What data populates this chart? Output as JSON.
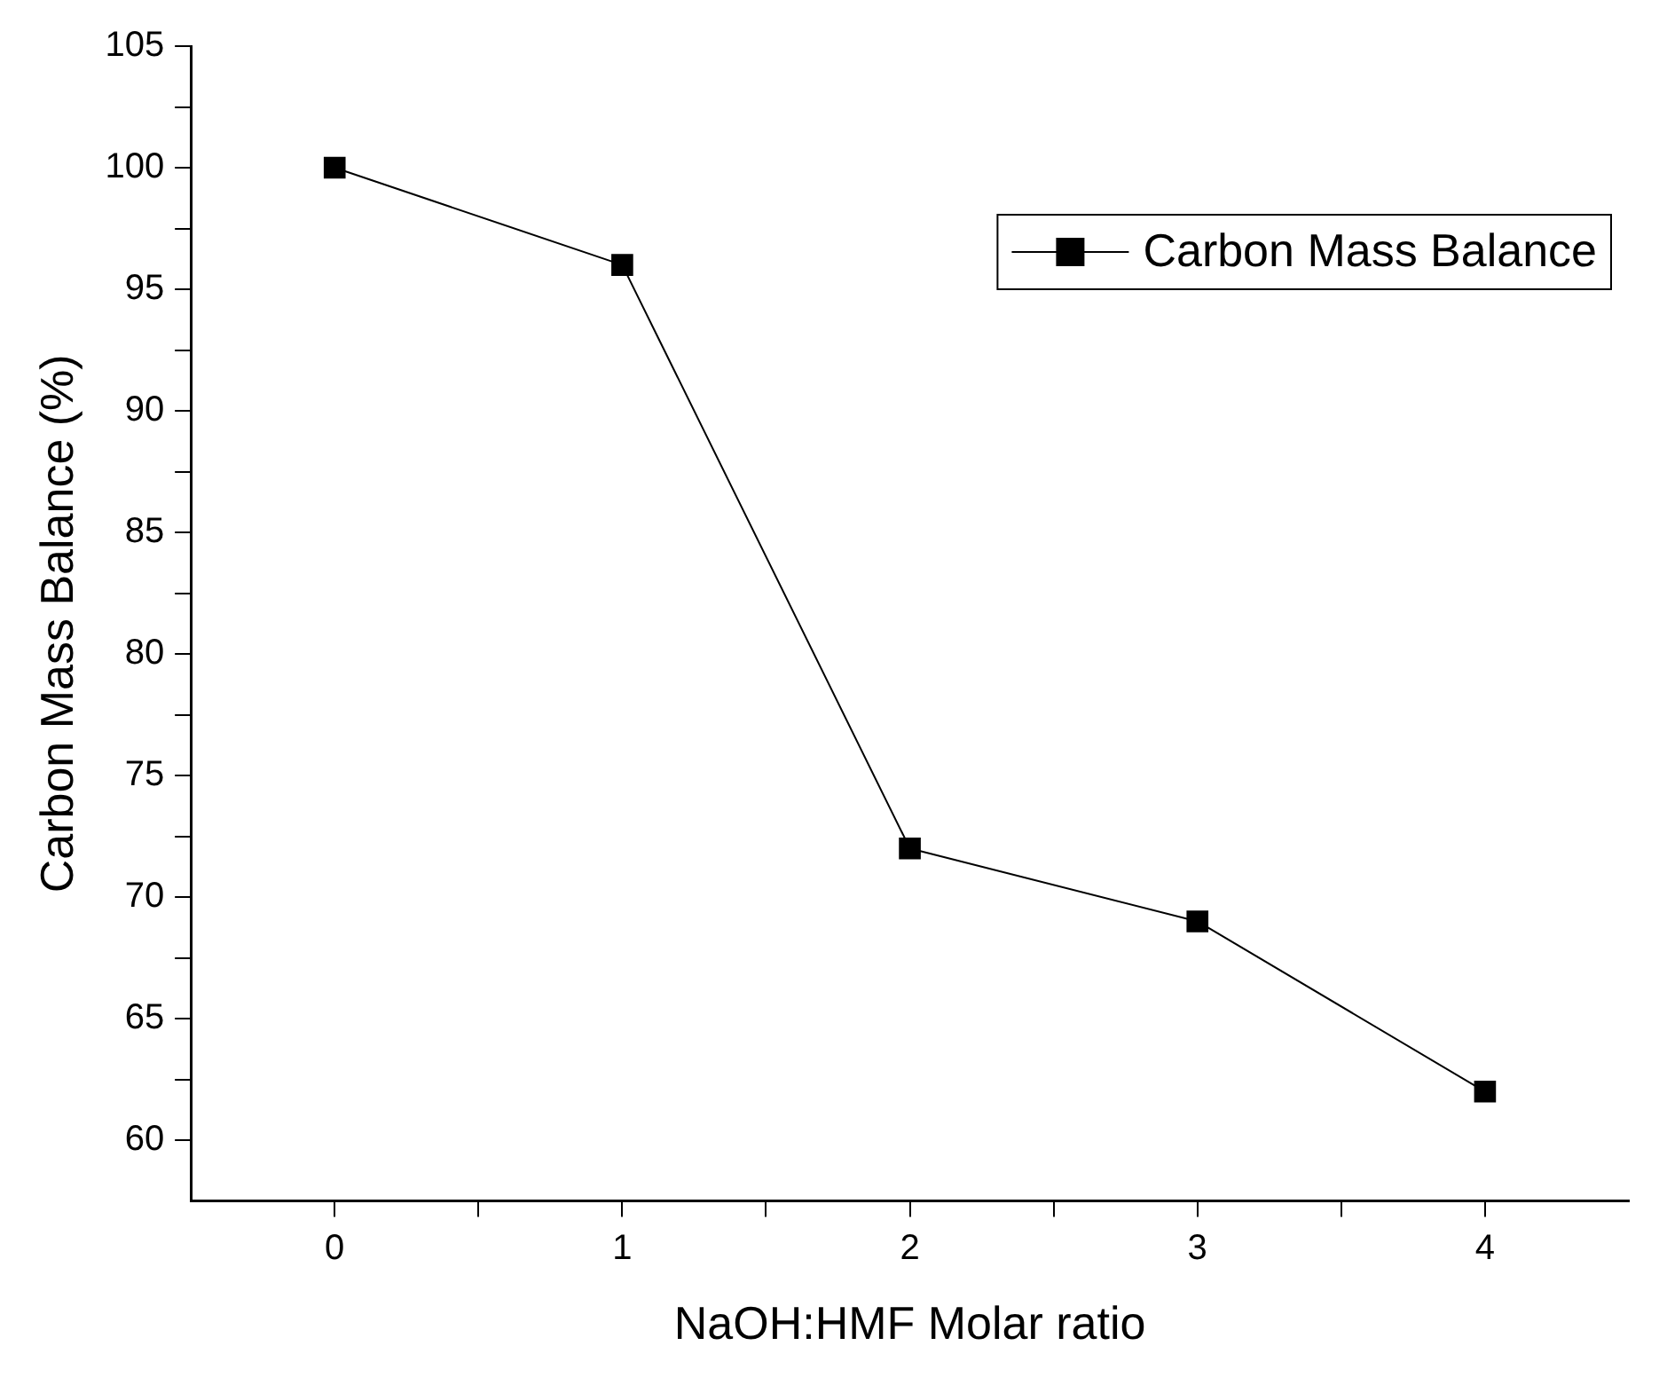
{
  "chart_data": {
    "type": "line",
    "xlabel": "NaOH:HMF Molar ratio",
    "ylabel": "Carbon Mass Balance (%)",
    "x": [
      0,
      1,
      2,
      3,
      4
    ],
    "series": [
      {
        "name": "Carbon Mass Balance",
        "color": "#000000",
        "values": [
          100,
          96,
          72,
          69,
          62
        ]
      }
    ],
    "xlim": [
      -0.5,
      4.5
    ],
    "ylim": [
      57.5,
      105
    ],
    "xticks": [
      0,
      {
        "value": 0.5,
        "label": null
      },
      1,
      {
        "value": 1.5,
        "label": null
      },
      2,
      {
        "value": 2.5,
        "label": null
      },
      3,
      {
        "value": 3.5,
        "label": null
      },
      4
    ],
    "yticks": [
      60,
      {
        "value": 62.5,
        "label": null
      },
      65,
      {
        "value": 67.5,
        "label": null
      },
      70,
      {
        "value": 72.5,
        "label": null
      },
      75,
      {
        "value": 77.5,
        "label": null
      },
      80,
      {
        "value": 82.5,
        "label": null
      },
      85,
      {
        "value": 87.5,
        "label": null
      },
      90,
      {
        "value": 92.5,
        "label": null
      },
      95,
      {
        "value": 97.5,
        "label": null
      },
      100,
      {
        "value": 102.5,
        "label": null
      },
      105
    ],
    "grid": false,
    "legend": "top right",
    "marker": "square",
    "line_style": "solid"
  }
}
